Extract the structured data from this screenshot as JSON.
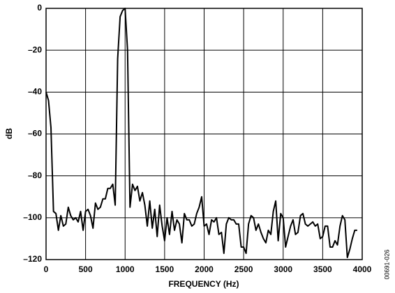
{
  "chart_data": {
    "type": "line",
    "xlabel": "FREQUENCY (Hz)",
    "ylabel": "dB",
    "side_note": "00691-026",
    "x": [
      0,
      31,
      62,
      94,
      125,
      156,
      187,
      219,
      250,
      281,
      312,
      344,
      375,
      406,
      437,
      469,
      500,
      531,
      562,
      594,
      625,
      656,
      687,
      719,
      750,
      781,
      812,
      844,
      875,
      906,
      937,
      969,
      1000,
      1031,
      1062,
      1094,
      1125,
      1156,
      1187,
      1219,
      1250,
      1281,
      1312,
      1344,
      1375,
      1406,
      1437,
      1469,
      1500,
      1531,
      1562,
      1594,
      1625,
      1656,
      1687,
      1719,
      1750,
      1781,
      1812,
      1844,
      1875,
      1906,
      1937,
      1969,
      2000,
      2031,
      2062,
      2094,
      2125,
      2156,
      2187,
      2219,
      2250,
      2281,
      2312,
      2344,
      2375,
      2406,
      2437,
      2469,
      2500,
      2531,
      2562,
      2594,
      2625,
      2656,
      2687,
      2719,
      2750,
      2781,
      2812,
      2844,
      2875,
      2906,
      2937,
      2969,
      3000,
      3031,
      3062,
      3094,
      3125,
      3156,
      3187,
      3219,
      3250,
      3281,
      3312,
      3344,
      3375,
      3406,
      3437,
      3469,
      3500,
      3531,
      3562,
      3594,
      3625,
      3656,
      3687,
      3719,
      3750,
      3781,
      3812,
      3844,
      3875,
      3906,
      3937
    ],
    "values": [
      -40,
      -44,
      -57,
      -97,
      -98,
      -106,
      -99,
      -104,
      -103,
      -95,
      -99,
      -101,
      -100,
      -102,
      -97,
      -106,
      -97,
      -96,
      -99,
      -105,
      -93,
      -96,
      -95,
      -91,
      -91,
      -86,
      -86,
      -84,
      -94,
      -24,
      -4,
      -1,
      0,
      -20,
      -95,
      -84,
      -87,
      -85,
      -92,
      -88,
      -94,
      -104,
      -92,
      -105,
      -96,
      -109,
      -94,
      -104,
      -111,
      -100,
      -108,
      -97,
      -106,
      -101,
      -103,
      -112,
      -98,
      -101,
      -101,
      -104,
      -103,
      -98,
      -95,
      -90,
      -104,
      -103,
      -108,
      -101,
      -102,
      -100,
      -108,
      -107,
      -117,
      -103,
      -100,
      -101,
      -101,
      -103,
      -103,
      -114,
      -114,
      -117,
      -103,
      -99,
      -100,
      -106,
      -103,
      -107,
      -110,
      -112,
      -106,
      -108,
      -97,
      -92,
      -111,
      -98,
      -100,
      -114,
      -109,
      -104,
      -101,
      -108,
      -107,
      -99,
      -98,
      -103,
      -104,
      -103,
      -102,
      -104,
      -103,
      -110,
      -109,
      -104,
      -104,
      -114,
      -114,
      -111,
      -113,
      -104,
      -99,
      -101,
      -119,
      -115,
      -110,
      -106,
      -106
    ],
    "color": "#000000",
    "xlim": [
      0,
      4000
    ],
    "xticks": [
      0,
      500,
      1000,
      1500,
      2000,
      2500,
      3000,
      3500,
      4000
    ],
    "ylim": [
      -120,
      0
    ],
    "yticks": [
      {
        "value": -120,
        "label": "–120"
      },
      {
        "value": -100,
        "label": "–100"
      },
      {
        "value": -80,
        "label": "–80"
      },
      {
        "value": -60,
        "label": "–60"
      },
      {
        "value": -40,
        "label": "–40"
      },
      {
        "value": -20,
        "label": "–20"
      },
      0
    ],
    "grid": true
  }
}
